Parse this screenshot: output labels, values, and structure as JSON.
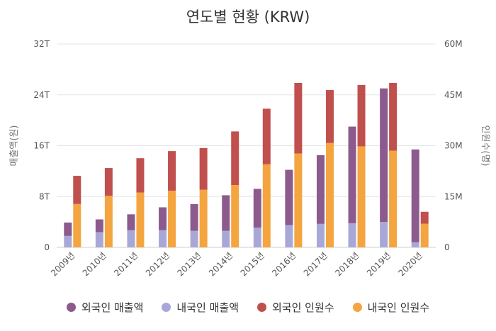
{
  "chart_data": {
    "type": "bar",
    "title": "연도별 현황 (KRW)",
    "left_axis": {
      "label": "매출액(원)",
      "ticks": [
        "0",
        "8T",
        "16T",
        "24T",
        "32T"
      ],
      "range": [
        0,
        32
      ]
    },
    "right_axis": {
      "label": "인원수(명)",
      "ticks": [
        "0",
        "15M",
        "30M",
        "45M",
        "60M"
      ],
      "range": [
        0,
        60
      ]
    },
    "categories": [
      "2009년",
      "2010년",
      "2011년",
      "2012년",
      "2013년",
      "2014년",
      "2015년",
      "2016년",
      "2017년",
      "2018년",
      "2019년",
      "2020년"
    ],
    "stacks": [
      {
        "axis": "left",
        "series": [
          {
            "name": "내국인 매출액",
            "color": "#a8a8d8",
            "values": [
              1.8,
              2.4,
              2.7,
              2.7,
              2.6,
              2.6,
              3.1,
              3.5,
              3.7,
              3.8,
              4.0,
              0.8
            ]
          },
          {
            "name": "외국인 매출액",
            "color": "#8c5a8c",
            "values": [
              2.1,
              2.0,
              2.5,
              3.6,
              4.2,
              5.6,
              6.1,
              8.7,
              10.8,
              15.2,
              21.0,
              14.6
            ]
          }
        ]
      },
      {
        "axis": "right",
        "series": [
          {
            "name": "내국인 인원수",
            "color": "#f4a53f",
            "values": [
              12.8,
              15.2,
              16.2,
              16.7,
              17.0,
              18.4,
              24.5,
              27.7,
              30.8,
              29.8,
              28.5,
              7.0
            ]
          },
          {
            "name": "외국인 인원수",
            "color": "#c0504d",
            "values": [
              8.3,
              8.2,
              10.1,
              11.7,
              12.3,
              15.8,
              16.4,
              20.8,
              15.6,
              18.1,
              20.0,
              3.5
            ]
          }
        ]
      }
    ],
    "legend": [
      "외국인 매출액",
      "내국인 매출액",
      "외국인 인원수",
      "내국인 인원수"
    ],
    "legend_position": "bottom",
    "grid": true
  },
  "legend_items": [
    {
      "label": "외국인 매출액",
      "color": "#8c5a8c"
    },
    {
      "label": "내국인 매출액",
      "color": "#a8a8d8"
    },
    {
      "label": "외국인 인원수",
      "color": "#c0504d"
    },
    {
      "label": "내국인 인원수",
      "color": "#f4a53f"
    }
  ]
}
